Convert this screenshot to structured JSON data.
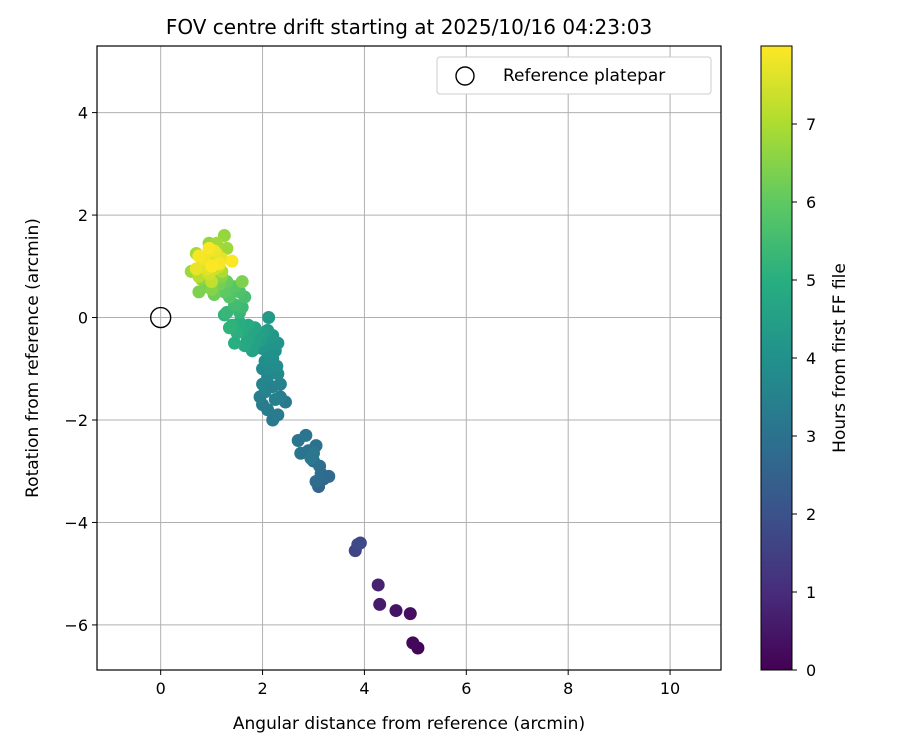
{
  "chart_data": {
    "type": "scatter",
    "title": "FOV centre drift starting at 2025/10/16 04:23:03",
    "xlabel": "Angular distance from reference (arcmin)",
    "ylabel": "Rotation from reference (arcmin)",
    "xlim": [
      -1.25,
      11.0
    ],
    "ylim": [
      -6.88,
      5.3
    ],
    "xticks": [
      0,
      2,
      4,
      6,
      8,
      10
    ],
    "yticks": [
      -6,
      -4,
      -2,
      0,
      2,
      4
    ],
    "grid": true,
    "legend": {
      "placement": "upper-right",
      "entries": [
        "Reference platepar"
      ]
    },
    "reference_point": {
      "label": "Reference platepar",
      "x": 0,
      "y": 0
    },
    "colorbar": {
      "label": "Hours from first FF file",
      "colormap": "viridis",
      "range": [
        0,
        8.0
      ],
      "ticks": [
        0,
        1,
        2,
        3,
        4,
        5,
        6,
        7
      ]
    },
    "series": [
      {
        "points": [
          [
            5.05,
            -6.45,
            0.1
          ],
          [
            4.95,
            -6.35,
            0.15
          ],
          [
            4.9,
            -5.78,
            0.3
          ],
          [
            4.62,
            -5.72,
            0.4
          ],
          [
            4.3,
            -5.6,
            0.6
          ],
          [
            4.27,
            -5.22,
            0.75
          ],
          [
            3.82,
            -4.55,
            1.6
          ],
          [
            3.92,
            -4.4,
            1.7
          ],
          [
            3.87,
            -4.43,
            1.75
          ],
          [
            3.1,
            -3.3,
            2.6
          ],
          [
            3.2,
            -3.15,
            2.7
          ],
          [
            3.3,
            -3.1,
            2.75
          ],
          [
            3.05,
            -3.2,
            2.8
          ],
          [
            3.15,
            -3.05,
            2.85
          ],
          [
            3.0,
            -2.8,
            2.9
          ],
          [
            3.12,
            -2.9,
            2.95
          ],
          [
            2.9,
            -2.6,
            3.0
          ],
          [
            3.05,
            -2.5,
            3.0
          ],
          [
            2.75,
            -2.65,
            3.05
          ],
          [
            2.85,
            -2.3,
            3.1
          ],
          [
            2.7,
            -2.4,
            3.1
          ],
          [
            3.0,
            -2.65,
            3.15
          ],
          [
            2.95,
            -2.75,
            3.15
          ],
          [
            2.45,
            -1.65,
            3.2
          ],
          [
            2.2,
            -2.0,
            3.25
          ],
          [
            2.3,
            -1.9,
            3.3
          ],
          [
            2.0,
            -1.7,
            3.3
          ],
          [
            2.1,
            -1.8,
            3.35
          ],
          [
            2.35,
            -1.55,
            3.4
          ],
          [
            1.95,
            -1.55,
            3.4
          ],
          [
            2.25,
            -1.6,
            3.45
          ],
          [
            2.05,
            -1.45,
            3.5
          ],
          [
            2.2,
            -1.35,
            3.55
          ],
          [
            2.35,
            -1.3,
            3.55
          ],
          [
            2.0,
            -1.3,
            3.6
          ],
          [
            2.1,
            -1.15,
            3.65
          ],
          [
            2.3,
            -1.1,
            3.7
          ],
          [
            2.0,
            -1.0,
            3.75
          ],
          [
            2.15,
            -1.0,
            3.8
          ],
          [
            2.28,
            -0.95,
            3.85
          ],
          [
            2.05,
            -0.85,
            3.9
          ],
          [
            2.2,
            -0.8,
            3.95
          ],
          [
            2.1,
            -0.7,
            4.0
          ],
          [
            2.25,
            -0.65,
            4.05
          ],
          [
            2.3,
            -0.5,
            4.1
          ],
          [
            1.98,
            -0.6,
            4.1
          ],
          [
            2.15,
            -0.5,
            4.15
          ],
          [
            2.05,
            -0.4,
            4.2
          ],
          [
            2.2,
            -0.35,
            4.25
          ],
          [
            2.12,
            0.0,
            4.3
          ],
          [
            2.1,
            -0.25,
            4.35
          ],
          [
            1.95,
            -0.45,
            4.4
          ],
          [
            2.0,
            -0.3,
            4.45
          ],
          [
            1.9,
            -0.35,
            4.5
          ],
          [
            1.85,
            -0.5,
            4.55
          ],
          [
            1.8,
            -0.65,
            4.6
          ],
          [
            1.85,
            -0.2,
            4.65
          ],
          [
            1.75,
            -0.3,
            4.7
          ],
          [
            1.7,
            -0.45,
            4.75
          ],
          [
            1.65,
            -0.55,
            4.8
          ],
          [
            1.72,
            -0.15,
            4.85
          ],
          [
            1.6,
            -0.25,
            4.9
          ],
          [
            1.55,
            -0.1,
            4.95
          ],
          [
            1.45,
            -0.5,
            5.0
          ],
          [
            1.5,
            -0.3,
            5.05
          ],
          [
            1.4,
            -0.15,
            5.1
          ],
          [
            1.35,
            -0.2,
            5.15
          ],
          [
            1.25,
            0.05,
            5.2
          ],
          [
            1.55,
            0.1,
            5.25
          ],
          [
            1.3,
            0.1,
            5.3
          ],
          [
            1.6,
            0.2,
            5.4
          ],
          [
            1.45,
            0.25,
            5.5
          ],
          [
            1.65,
            0.4,
            5.6
          ],
          [
            1.55,
            0.5,
            5.7
          ],
          [
            1.35,
            0.4,
            5.8
          ],
          [
            1.45,
            0.6,
            5.9
          ],
          [
            1.25,
            0.5,
            6.0
          ],
          [
            1.3,
            0.7,
            6.1
          ],
          [
            1.05,
            0.45,
            6.2
          ],
          [
            1.15,
            0.65,
            6.3
          ],
          [
            0.9,
            0.6,
            6.3
          ],
          [
            1.6,
            0.7,
            6.4
          ],
          [
            0.75,
            0.5,
            6.4
          ],
          [
            1.0,
            0.55,
            6.5
          ],
          [
            1.2,
            0.8,
            6.5
          ],
          [
            0.8,
            0.75,
            6.6
          ],
          [
            1.05,
            0.85,
            6.6
          ],
          [
            1.25,
            1.6,
            6.7
          ],
          [
            0.95,
            1.45,
            6.7
          ],
          [
            1.3,
            1.35,
            6.8
          ],
          [
            0.6,
            0.9,
            6.8
          ],
          [
            1.1,
            1.45,
            6.85
          ],
          [
            0.85,
            0.95,
            6.9
          ],
          [
            0.7,
            1.25,
            6.9
          ],
          [
            1.2,
            0.9,
            7.0
          ],
          [
            0.95,
            1.05,
            7.0
          ],
          [
            1.1,
            1.1,
            7.1
          ],
          [
            0.75,
            0.8,
            7.15
          ],
          [
            0.9,
            1.2,
            7.2
          ],
          [
            1.0,
            0.7,
            7.25
          ],
          [
            1.15,
            1.0,
            7.3
          ],
          [
            0.85,
            1.1,
            7.35
          ],
          [
            1.05,
            0.95,
            7.4
          ],
          [
            0.95,
            0.85,
            7.45
          ],
          [
            1.1,
            1.25,
            7.5
          ],
          [
            0.8,
            1.0,
            7.55
          ],
          [
            1.0,
            1.2,
            7.6
          ],
          [
            0.9,
            0.95,
            7.65
          ],
          [
            1.2,
            1.15,
            7.7
          ],
          [
            0.7,
            0.95,
            7.75
          ],
          [
            1.05,
            1.3,
            7.8
          ],
          [
            0.85,
            1.15,
            7.85
          ],
          [
            0.75,
            1.2,
            7.9
          ],
          [
            1.15,
            1.05,
            7.92
          ],
          [
            0.95,
            1.35,
            7.95
          ],
          [
            1.4,
            1.1,
            7.97
          ],
          [
            1.0,
            1.0,
            7.99
          ]
        ]
      }
    ]
  }
}
